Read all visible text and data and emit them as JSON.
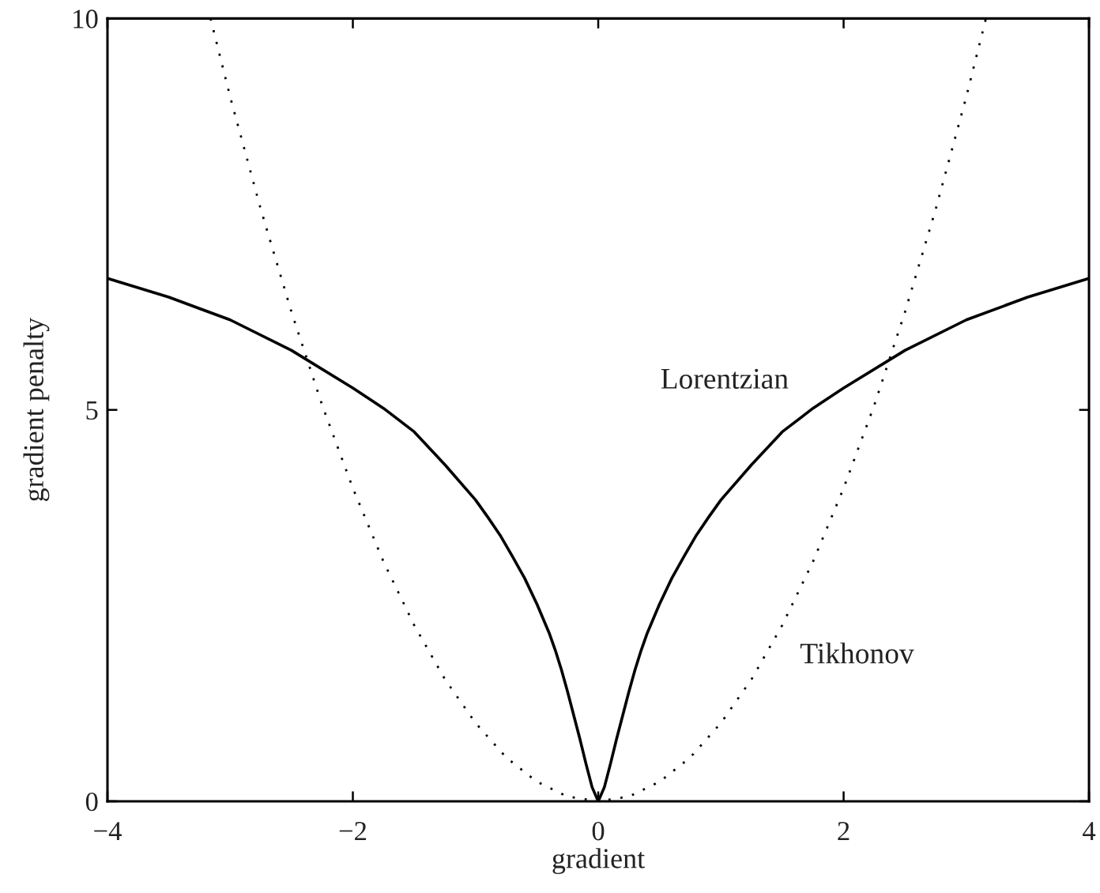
{
  "chart_data": {
    "type": "line",
    "xlabel": "gradient",
    "ylabel": "gradient penalty",
    "xlim": [
      -4,
      4
    ],
    "ylim": [
      0,
      10
    ],
    "xticks": [
      {
        "value": -4,
        "label": "−4"
      },
      {
        "value": -2,
        "label": "−2"
      },
      0,
      2,
      4
    ],
    "yticks": [
      0,
      5,
      10
    ],
    "grid": false,
    "legend": false,
    "series": [
      {
        "name": "Lorentzian",
        "color": "#000000",
        "line_style": "solid",
        "x": [
          -4.0,
          -3.5,
          -3.0,
          -2.5,
          -2.0,
          -1.75,
          -1.5,
          -1.25,
          -1.0,
          -0.9,
          -0.8,
          -0.7,
          -0.6,
          -0.5,
          -0.4,
          -0.35,
          -0.3,
          -0.25,
          -0.2,
          -0.15,
          -0.1,
          -0.05,
          0,
          0.05,
          0.1,
          0.15,
          0.2,
          0.25,
          0.3,
          0.35,
          0.4,
          0.5,
          0.6,
          0.7,
          0.8,
          0.9,
          1.0,
          1.25,
          1.5,
          1.75,
          2.0,
          2.5,
          3.0,
          3.5,
          4.0
        ],
        "values": [
          6.68,
          6.44,
          6.15,
          5.76,
          5.28,
          5.02,
          4.72,
          4.3,
          3.85,
          3.63,
          3.4,
          3.13,
          2.85,
          2.52,
          2.15,
          1.93,
          1.68,
          1.4,
          1.1,
          0.8,
          0.48,
          0.18,
          0,
          0.18,
          0.48,
          0.8,
          1.1,
          1.4,
          1.68,
          1.93,
          2.15,
          2.52,
          2.85,
          3.13,
          3.4,
          3.63,
          3.85,
          4.3,
          4.72,
          5.02,
          5.28,
          5.76,
          6.15,
          6.44,
          6.68
        ]
      },
      {
        "name": "Tikhonov",
        "color": "#000000",
        "line_style": "dotted",
        "x": [
          -3.16,
          -3.0,
          -2.75,
          -2.5,
          -2.25,
          -2.0,
          -1.75,
          -1.5,
          -1.25,
          -1.0,
          -0.75,
          -0.5,
          -0.25,
          0,
          0.25,
          0.5,
          0.75,
          1.0,
          1.25,
          1.5,
          1.75,
          2.0,
          2.25,
          2.5,
          2.75,
          3.0,
          3.16
        ],
        "values": [
          10.0,
          9.0,
          7.56,
          6.25,
          5.06,
          4.0,
          3.06,
          2.25,
          1.56,
          1.0,
          0.56,
          0.25,
          0.06,
          0,
          0.06,
          0.25,
          0.56,
          1.0,
          1.56,
          2.25,
          3.06,
          4.0,
          5.06,
          6.25,
          7.56,
          9.0,
          10.0
        ]
      }
    ]
  }
}
